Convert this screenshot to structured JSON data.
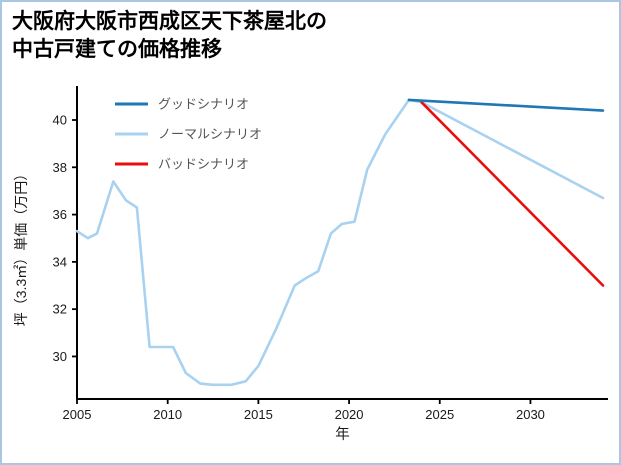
{
  "title": {
    "line1": "大阪府大阪市西成区天下茶屋北の",
    "line2": "中古戸建ての価格推移"
  },
  "colors": {
    "page_border": "#a9c6e2",
    "axis": "#000000",
    "tick_label": "#1a1a1a",
    "legend_text": "#555555",
    "good_scenario": "#1f77b4",
    "normal_scenario": "#a9d2f0",
    "bad_scenario": "#ea0d0d"
  },
  "chart_data": {
    "type": "line",
    "title": "大阪府大阪市西成区天下茶屋北の中古戸建ての価格推移",
    "xlabel": "年",
    "ylabel": "坪（3.3㎡）単価（万円）",
    "xlim": [
      2005,
      2034
    ],
    "ylim": [
      28.2,
      41.1
    ],
    "xticks": [
      2005,
      2010,
      2015,
      2020,
      2025,
      2030
    ],
    "yticks": [
      30,
      32,
      34,
      36,
      38,
      40
    ],
    "grid": false,
    "legend_position": "upper-left",
    "series": [
      {
        "name": "グッドシナリオ",
        "role": "good-scenario-forecast",
        "color": "#1f77b4",
        "x": [
          2023.3,
          2034
        ],
        "y": [
          40.85,
          40.4
        ]
      },
      {
        "name": "ノーマルシナリオ",
        "role": "historical-and-normal-forecast",
        "color": "#a9d2f0",
        "x": [
          2005,
          2005.6,
          2006.1,
          2007,
          2007.7,
          2008.3,
          2009,
          2010.3,
          2011,
          2011.8,
          2012.5,
          2013.5,
          2014.3,
          2015,
          2016,
          2017,
          2017.6,
          2018.3,
          2019,
          2019.6,
          2020.3,
          2021,
          2022,
          2023.3,
          2024,
          2034
        ],
        "y": [
          35.3,
          35.0,
          35.2,
          37.4,
          36.6,
          36.3,
          30.4,
          30.4,
          29.3,
          28.85,
          28.8,
          28.8,
          28.95,
          29.6,
          31.2,
          33.0,
          33.3,
          33.6,
          35.2,
          35.6,
          35.7,
          37.9,
          39.4,
          40.85,
          40.75,
          36.7
        ]
      },
      {
        "name": "バッドシナリオ",
        "role": "bad-scenario-forecast",
        "color": "#ea0d0d",
        "x": [
          2024,
          2034
        ],
        "y": [
          40.75,
          33.0
        ]
      }
    ]
  }
}
